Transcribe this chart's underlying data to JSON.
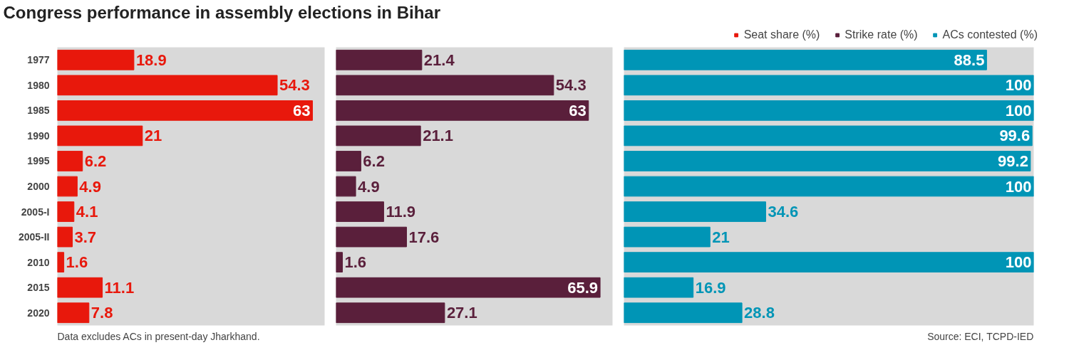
{
  "chart_data": [
    {
      "type": "bar",
      "orientation": "horizontal",
      "title": "Congress performance in assembly elections in Bihar",
      "categories": [
        "1977",
        "1980",
        "1985",
        "1990",
        "1995",
        "2000",
        "2005-I",
        "2005-II",
        "2010",
        "2015",
        "2020"
      ],
      "series": [
        {
          "name": "Seat share (%)",
          "color": "#e8180c",
          "values": [
            18.9,
            54.3,
            63,
            21,
            6.2,
            4.9,
            4.1,
            3.7,
            1.6,
            11.1,
            7.8
          ]
        }
      ],
      "xlim": [
        0,
        66
      ],
      "data_labels": true,
      "legend": "top",
      "tick_labels": "y",
      "grid": false,
      "annotations": [
        "Data excludes ACs in present-day Jharkhand."
      ]
    },
    {
      "type": "bar",
      "orientation": "horizontal",
      "series": [
        {
          "name": "Strike rate (%)",
          "color": "#5a1f3b",
          "values": [
            21.4,
            54.3,
            63,
            21.1,
            6.2,
            4.9,
            11.9,
            17.6,
            1.6,
            65.9,
            27.1
          ]
        }
      ],
      "xlim": [
        0,
        69
      ],
      "data_labels": true,
      "legend": "top",
      "tick_labels": false,
      "grid": false
    },
    {
      "type": "bar",
      "orientation": "horizontal",
      "series": [
        {
          "name": "ACs contested (%)",
          "color": "#0095b6",
          "values": [
            88.5,
            100,
            100,
            99.6,
            99.2,
            100,
            34.6,
            21,
            100,
            16.9,
            28.8
          ]
        }
      ],
      "xlim": [
        0,
        100
      ],
      "data_labels": true,
      "legend": "top",
      "tick_labels": false,
      "grid": false,
      "annotations": [
        "Source: ECI, TCPD-IED"
      ]
    }
  ]
}
